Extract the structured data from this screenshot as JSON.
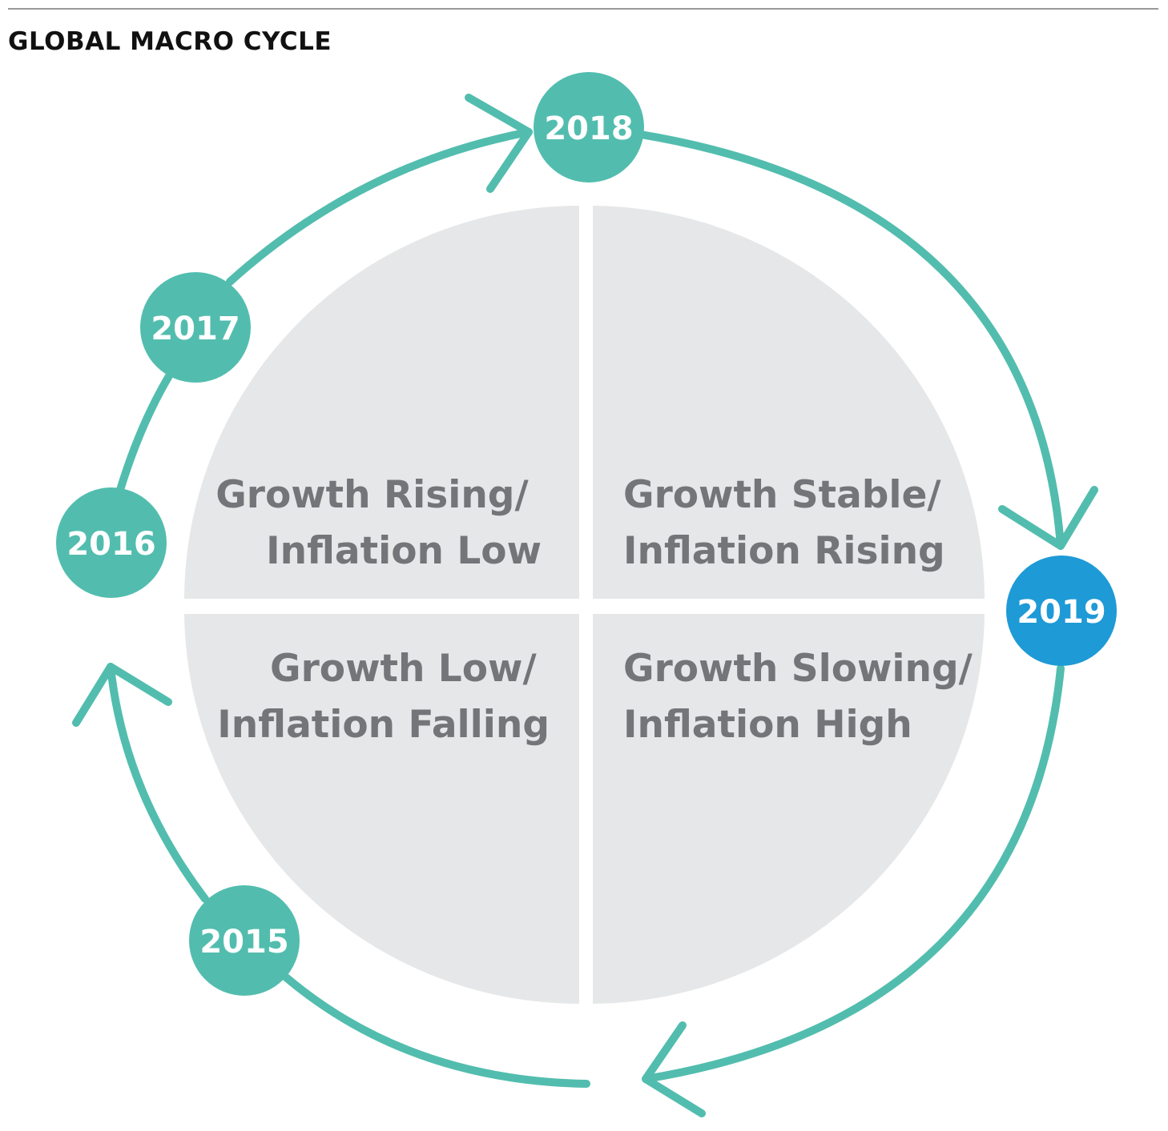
{
  "title": "GLOBAL MACRO CYCLE",
  "colors": {
    "teal": "#52bdae",
    "current_blue": "#1e9ad6",
    "quadrant_fill": "#e6e7e8",
    "quadrant_text": "#737578"
  },
  "quadrants": {
    "top_left": {
      "line1": "Growth Rising/",
      "line2": "Inflation Low"
    },
    "top_right": {
      "line1": "Growth Stable/",
      "line2": "Inflation Rising"
    },
    "bottom_left": {
      "line1": "Growth Low/",
      "line2": "Inflation Falling"
    },
    "bottom_right": {
      "line1": "Growth Slowing/",
      "line2": "Inflation High"
    }
  },
  "years": {
    "y2015": "2015",
    "y2016": "2016",
    "y2017": "2017",
    "y2018": "2018",
    "y2019": "2019"
  },
  "current_year": "2019"
}
